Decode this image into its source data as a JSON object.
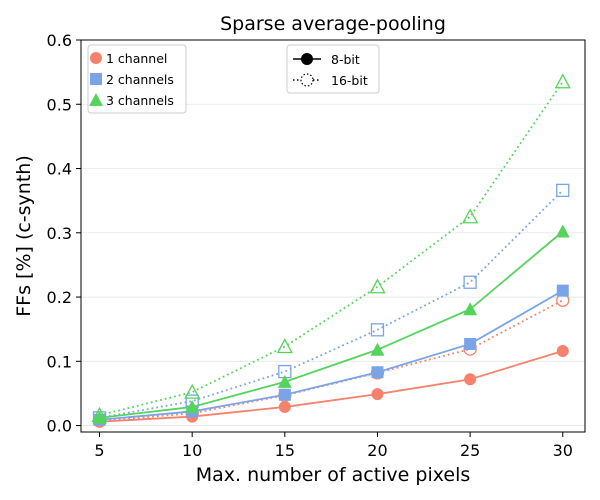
{
  "chart_data": {
    "type": "line",
    "title": "Sparse average-pooling",
    "xlabel": "Max. number of active pixels",
    "ylabel": "FFs [%] (c-synth)",
    "x": [
      5,
      10,
      15,
      20,
      25,
      30
    ],
    "xlim": [
      4,
      31.2
    ],
    "ylim": [
      -0.01,
      0.6
    ],
    "xticks": [
      "5",
      "10",
      "15",
      "20",
      "25",
      "30"
    ],
    "yticks": [
      "0.0",
      "0.1",
      "0.2",
      "0.3",
      "0.4",
      "0.5",
      "0.6"
    ],
    "ytick_values": [
      0.0,
      0.1,
      0.2,
      0.3,
      0.4,
      0.5,
      0.6
    ],
    "grid": "horizontal",
    "series": [
      {
        "name": "1 channel, 8-bit",
        "channels": 1,
        "precision": "8-bit",
        "marker": "circle",
        "color": "#f5826b",
        "values": [
          0.006,
          0.014,
          0.029,
          0.049,
          0.072,
          0.116
        ]
      },
      {
        "name": "1 channel, 16-bit",
        "channels": 1,
        "precision": "16-bit",
        "marker": "circle",
        "color": "#f5826b",
        "values": [
          0.007,
          0.019,
          0.047,
          0.082,
          0.119,
          0.195
        ]
      },
      {
        "name": "2 channels, 8-bit",
        "channels": 2,
        "precision": "8-bit",
        "marker": "square",
        "color": "#7aa4e8",
        "values": [
          0.009,
          0.022,
          0.048,
          0.083,
          0.127,
          0.21
        ]
      },
      {
        "name": "2 channels, 16-bit",
        "channels": 2,
        "precision": "16-bit",
        "marker": "square",
        "color": "#7aa4e8",
        "values": [
          0.012,
          0.038,
          0.084,
          0.149,
          0.223,
          0.366
        ]
      },
      {
        "name": "3 channels, 8-bit",
        "channels": 3,
        "precision": "8-bit",
        "marker": "triangle",
        "color": "#55d45c",
        "values": [
          0.012,
          0.029,
          0.068,
          0.118,
          0.181,
          0.302
        ]
      },
      {
        "name": "3 channels, 16-bit",
        "channels": 3,
        "precision": "16-bit",
        "marker": "triangle",
        "color": "#55d45c",
        "values": [
          0.016,
          0.052,
          0.123,
          0.216,
          0.325,
          0.535
        ]
      }
    ],
    "legend_channels": {
      "placement": "top-left",
      "entries": [
        {
          "label": "1 channel",
          "marker": "circle",
          "color": "#f5826b"
        },
        {
          "label": "2 channels",
          "marker": "square",
          "color": "#7aa4e8"
        },
        {
          "label": "3 channels",
          "marker": "triangle",
          "color": "#55d45c"
        }
      ]
    },
    "legend_precision": {
      "placement": "top-center",
      "entries": [
        {
          "label": "8-bit",
          "style": "solid",
          "marker": "filled-circle"
        },
        {
          "label": "16-bit",
          "style": "dotted",
          "marker": "hollow-dotted-circle"
        }
      ]
    }
  }
}
